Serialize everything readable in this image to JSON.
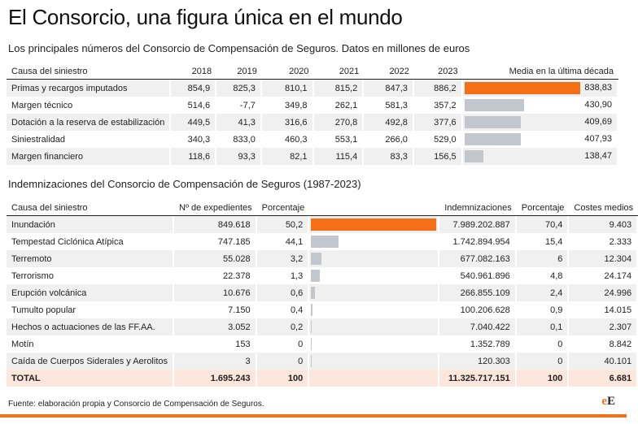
{
  "title": "El Consorcio, una figura única en el mundo",
  "table1": {
    "subtitle": "Los principales números del Consorcio de Compensación de Seguros. Datos en millones de euros",
    "headers": {
      "cause": "Causa del siniestro",
      "y2018": "2018",
      "y2019": "2019",
      "y2020": "2020",
      "y2021": "2021",
      "y2022": "2022",
      "y2023": "2023",
      "avg": "Media en la última década"
    },
    "rows": [
      {
        "cause": "Primas y recargos imputados",
        "y2018": "854,9",
        "y2019": "825,3",
        "y2020": "810,1",
        "y2021": "815,2",
        "y2022": "847,3",
        "y2023": "886,2",
        "avg": "838,83",
        "avg_value": 838.83
      },
      {
        "cause": "Margen técnico",
        "y2018": "514,6",
        "y2019": "-7,7",
        "y2020": "349,8",
        "y2021": "262,1",
        "y2022": "581,3",
        "y2023": "357,2",
        "avg": "430,90",
        "avg_value": 430.9
      },
      {
        "cause": "Dotación a la reserva de estabilización",
        "y2018": "449,5",
        "y2019": "41,3",
        "y2020": "316,6",
        "y2021": "270,8",
        "y2022": "492,8",
        "y2023": "377,6",
        "avg": "409,69",
        "avg_value": 409.69
      },
      {
        "cause": "Siniestralidad",
        "y2018": "340,3",
        "y2019": "833,0",
        "y2020": "460,3",
        "y2021": "553,1",
        "y2022": "266,0",
        "y2023": "529,0",
        "avg": "407,93",
        "avg_value": 407.93
      },
      {
        "cause": "Margen financiero",
        "y2018": "118,6",
        "y2019": "93,3",
        "y2020": "82,1",
        "y2021": "115,4",
        "y2022": "83,3",
        "y2023": "156,5",
        "avg": "138,47",
        "avg_value": 138.47
      }
    ]
  },
  "table2": {
    "subtitle": "Indemnizaciones del Consorcio de Compensación de Seguros (1987-2023)",
    "headers": {
      "cause": "Causa del siniestro",
      "files": "Nº de expedientes",
      "pct1": "Porcentaje",
      "amount": "Indemnizaciones",
      "pct2": "Porcentaje",
      "cost": "Costes medios"
    },
    "rows": [
      {
        "cause": "Inundación",
        "files": "849.618",
        "pct1": "50,2",
        "amount": "7.989.202.887",
        "pct2": "70,4",
        "cost": "9.403",
        "amount_value": 7989202887
      },
      {
        "cause": "Tempestad Ciclónica Atípica",
        "files": "747.185",
        "pct1": "44,1",
        "amount": "1.742.894.954",
        "pct2": "15,4",
        "cost": "2.333",
        "amount_value": 1742894954
      },
      {
        "cause": "Terremoto",
        "files": "55.028",
        "pct1": "3,2",
        "amount": "677.082.163",
        "pct2": "6",
        "cost": "12.304",
        "amount_value": 677082163
      },
      {
        "cause": "Terrorismo",
        "files": "22.378",
        "pct1": "1,3",
        "amount": "540.961.896",
        "pct2": "4,8",
        "cost": "24.174",
        "amount_value": 540961896
      },
      {
        "cause": "Erupción volcánica",
        "files": "10.676",
        "pct1": "0,6",
        "amount": "266.855.109",
        "pct2": "2,4",
        "cost": "24.996",
        "amount_value": 266855109
      },
      {
        "cause": "Tumulto popular",
        "files": "7.150",
        "pct1": "0,4",
        "amount": "100.206.628",
        "pct2": "0,9",
        "cost": "14.015",
        "amount_value": 100206628
      },
      {
        "cause": "Hechos o actuaciones de las FF.AA.",
        "files": "3.052",
        "pct1": "0,2",
        "amount": "7.040.422",
        "pct2": "0,1",
        "cost": "2.307",
        "amount_value": 7040422
      },
      {
        "cause": "Motín",
        "files": "153",
        "pct1": "0",
        "amount": "1.352.789",
        "pct2": "0",
        "cost": "8.842",
        "amount_value": 1352789
      },
      {
        "cause": "Caída de Cuerpos Siderales y Aerolitos",
        "files": "3",
        "pct1": "0",
        "amount": "120.303",
        "pct2": "0",
        "cost": "40.101",
        "amount_value": 120303
      }
    ],
    "total": {
      "cause": "TOTAL",
      "files": "1.695.243",
      "pct1": "100",
      "amount": "11.325.717.151",
      "pct2": "100",
      "cost": "6.681"
    }
  },
  "source": "Fuente: elaboración propia y Consorcio de Compensación de Seguros.",
  "logo": {
    "e": "e",
    "E": "E"
  },
  "colors": {
    "accent": "#f46f16",
    "bar": "#c2c6cd",
    "row_alt": "#f0f0f0",
    "total_bg": "#fde6dc"
  }
}
